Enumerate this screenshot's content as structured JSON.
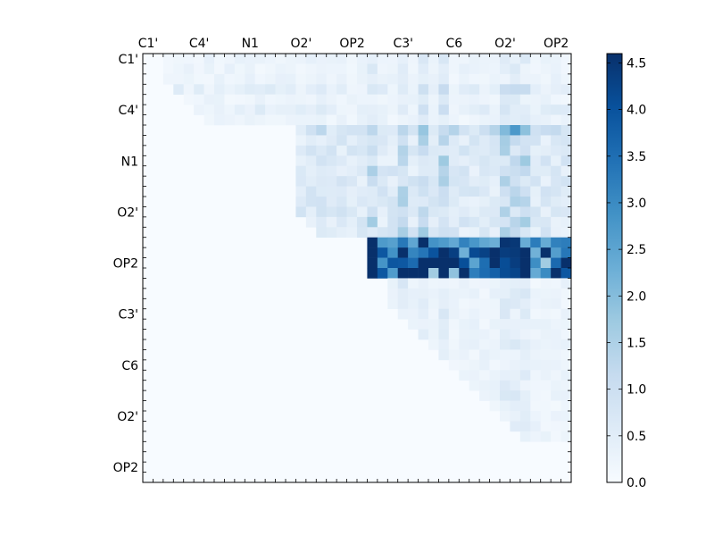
{
  "chart_data": {
    "type": "heatmap",
    "title": "",
    "xlabel": "",
    "ylabel": "",
    "n": 42,
    "x_tick_labels": [
      "C1'",
      "C4'",
      "N1",
      "O2'",
      "OP2",
      "C3'",
      "C6",
      "O2'",
      "OP2"
    ],
    "y_tick_labels": [
      "C1'",
      "C4'",
      "N1",
      "O2'",
      "OP2",
      "C3'",
      "C6",
      "O2'",
      "OP2"
    ],
    "colorbar": {
      "min": 0.0,
      "max": 4.6,
      "ticks": [
        "0.0",
        "0.5",
        "1.0",
        "1.5",
        "2.0",
        "2.5",
        "3.0",
        "3.5",
        "4.0",
        "4.5"
      ],
      "colormap": "Blues"
    },
    "regions": [
      {
        "rows": [
          0,
          7
        ],
        "cols": [
          2,
          42
        ],
        "base": 0.3,
        "note": "upper band"
      },
      {
        "rows": [
          7,
          18
        ],
        "cols": [
          15,
          42
        ],
        "base": 0.7
      },
      {
        "rows": [
          18,
          22
        ],
        "cols": [
          22,
          42
        ],
        "base": 2.6
      },
      {
        "rows": [
          22,
          38
        ],
        "cols": [
          24,
          42
        ],
        "base": 0.3
      }
    ],
    "hot_columns": [
      22,
      25,
      27,
      29,
      35,
      36,
      37
    ],
    "hot_rows": [
      3,
      5,
      7,
      19,
      20,
      21
    ],
    "peak_value": 4.6
  }
}
